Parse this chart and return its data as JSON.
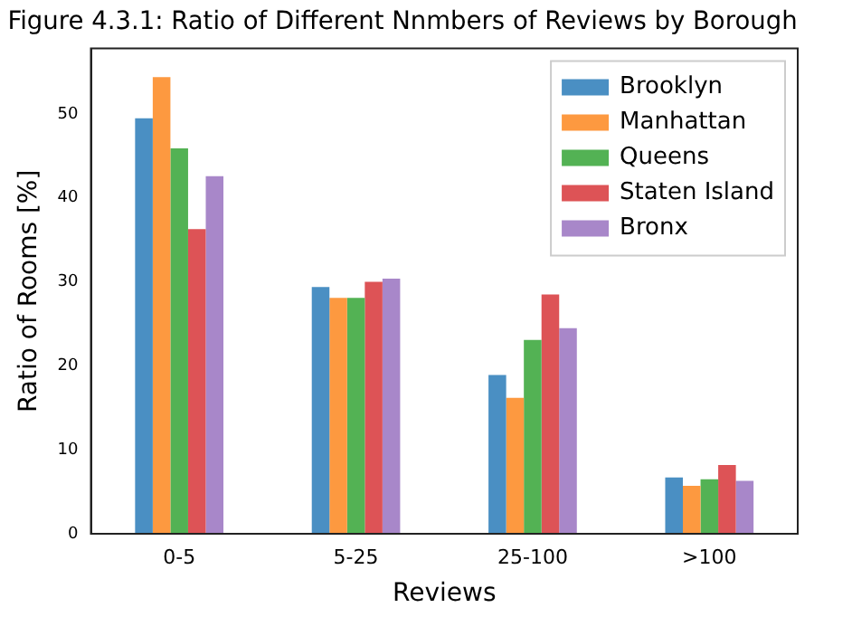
{
  "chart_data": {
    "type": "bar",
    "title": "Figure 4.3.1: Ratio of Different Nnmbers of Reviews by Borough",
    "xlabel": "Reviews",
    "ylabel": "Ratio of Rooms [%]",
    "categories": [
      "0-5",
      "5-25",
      "25-100",
      ">100"
    ],
    "series": [
      {
        "name": "Brooklyn",
        "color": "#4a8fc3",
        "values": [
          49.5,
          29.4,
          18.9,
          6.7
        ]
      },
      {
        "name": "Manhattan",
        "color": "#fd9940",
        "values": [
          54.4,
          28.1,
          16.2,
          5.7
        ]
      },
      {
        "name": "Queens",
        "color": "#53b254",
        "values": [
          45.9,
          28.1,
          23.1,
          6.5
        ]
      },
      {
        "name": "Staten Island",
        "color": "#dd5356",
        "values": [
          36.3,
          30.0,
          28.5,
          8.2
        ]
      },
      {
        "name": "Bronx",
        "color": "#a887c9",
        "values": [
          42.6,
          30.4,
          24.5,
          6.3
        ]
      }
    ],
    "ylim": [
      0,
      57.8
    ],
    "yticks": [
      0,
      10,
      20,
      30,
      40,
      50
    ],
    "grid": false,
    "legend": "top right"
  }
}
